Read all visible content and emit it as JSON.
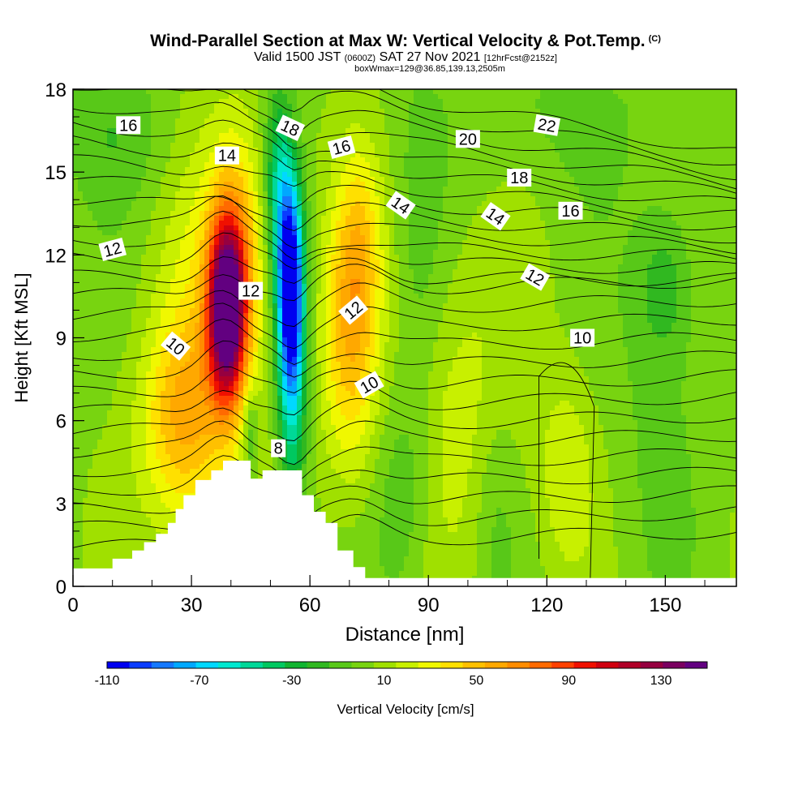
{
  "title": {
    "main": "Wind-Parallel Section at Max W: Vertical Velocity & Pot.Temp.",
    "copyright": "(C)",
    "valid_prefix": "Valid 1500 JST",
    "valid_utc": "(0600Z)",
    "valid_date": "SAT 27 Nov 2021",
    "forecast": "[12hrFcst@2152z]",
    "box_info": "boxWmax=129@36.85,139.13,2505m"
  },
  "chart_data": {
    "type": "heatmap",
    "xlabel": "Distance [nm]",
    "ylabel": "Height [Kft MSL]",
    "xlim": [
      0,
      168
    ],
    "ylim": [
      0,
      18
    ],
    "x_ticks": [
      "0",
      "30",
      "60",
      "90",
      "120",
      "150"
    ],
    "x_tick_values": [
      0,
      30,
      60,
      90,
      120,
      150
    ],
    "y_ticks": [
      "0",
      "3",
      "6",
      "9",
      "12",
      "15",
      "18"
    ],
    "y_tick_values": [
      0,
      3,
      6,
      9,
      12,
      15,
      18
    ],
    "colorbar": {
      "label": "Vertical Velocity [cm/s]",
      "tick_labels": [
        "-110",
        "-70",
        "-30",
        "10",
        "50",
        "90",
        "130"
      ],
      "tick_values": [
        -110,
        -70,
        -30,
        10,
        50,
        90,
        130
      ],
      "levels": [
        -110,
        -100,
        -90,
        -80,
        -70,
        -60,
        -50,
        -40,
        -30,
        -20,
        -10,
        0,
        10,
        20,
        30,
        40,
        50,
        60,
        70,
        80,
        90,
        100,
        110,
        120,
        130,
        140,
        150
      ],
      "colors": [
        "#0000f0",
        "#0a3cff",
        "#1478ff",
        "#00a8ff",
        "#00d8ff",
        "#00e8d0",
        "#00d898",
        "#00c860",
        "#10b430",
        "#30b820",
        "#58c818",
        "#78d410",
        "#a0e000",
        "#c8f000",
        "#f0f800",
        "#ffe000",
        "#ffc000",
        "#ffa800",
        "#ff8c00",
        "#ff6a00",
        "#ff4000",
        "#f01000",
        "#d00010",
        "#b00028",
        "#960040",
        "#7a0060",
        "#620080"
      ]
    },
    "terrain": [
      [
        0,
        0.65
      ],
      [
        10,
        0.65
      ],
      [
        10,
        1.0
      ],
      [
        15,
        1.0
      ],
      [
        15,
        1.3
      ],
      [
        18,
        1.3
      ],
      [
        18,
        1.6
      ],
      [
        21,
        1.6
      ],
      [
        21,
        1.9
      ],
      [
        24,
        1.9
      ],
      [
        24,
        2.3
      ],
      [
        26,
        2.3
      ],
      [
        26,
        2.8
      ],
      [
        28,
        2.8
      ],
      [
        28,
        3.3
      ],
      [
        31,
        3.3
      ],
      [
        31,
        3.85
      ],
      [
        35,
        3.85
      ],
      [
        35,
        4.2
      ],
      [
        38,
        4.2
      ],
      [
        38,
        4.55
      ],
      [
        45,
        4.55
      ],
      [
        45,
        3.9
      ],
      [
        48,
        3.9
      ],
      [
        48,
        4.2
      ],
      [
        58,
        4.2
      ],
      [
        58,
        3.3
      ],
      [
        61,
        3.3
      ],
      [
        61,
        2.7
      ],
      [
        64,
        2.7
      ],
      [
        64,
        2.3
      ],
      [
        67,
        2.3
      ],
      [
        67,
        1.3
      ],
      [
        71,
        1.3
      ],
      [
        71,
        0.7
      ],
      [
        74,
        0.7
      ],
      [
        74,
        0.3
      ],
      [
        168,
        0.3
      ]
    ],
    "velocity_features": [
      {
        "x": 39,
        "y": 10.0,
        "sx": 3.2,
        "sy": 2.2,
        "value": 150
      },
      {
        "x": 42,
        "y": 12.0,
        "sx": 5.0,
        "sy": 3.2,
        "value": 40
      },
      {
        "x": 27,
        "y": 6.0,
        "sx": 7.0,
        "sy": 2.5,
        "value": 40
      },
      {
        "x": 34,
        "y": 8.5,
        "sx": 9.0,
        "sy": 5.5,
        "value": 25
      },
      {
        "x": 55,
        "y": 11.0,
        "sx": 2.2,
        "sy": 2.5,
        "value": -110
      },
      {
        "x": 55.5,
        "y": 7.5,
        "sx": 2.6,
        "sy": 3.8,
        "value": -55
      },
      {
        "x": 52,
        "y": 14.5,
        "sx": 2.5,
        "sy": 2.5,
        "value": -45
      },
      {
        "x": 70,
        "y": 9.0,
        "sx": 5.0,
        "sy": 3.5,
        "value": 45
      },
      {
        "x": 73,
        "y": 12.5,
        "sx": 4.0,
        "sy": 2.5,
        "value": 25
      },
      {
        "x": 96,
        "y": 6.5,
        "sx": 12.0,
        "sy": 4.0,
        "value": 18
      },
      {
        "x": 125,
        "y": 4.0,
        "sx": 5.0,
        "sy": 2.5,
        "value": 20
      },
      {
        "x": 88,
        "y": 10.5,
        "sx": 4.5,
        "sy": 6.0,
        "value": -12
      },
      {
        "x": 83,
        "y": 3.5,
        "sx": 5.0,
        "sy": 3.0,
        "value": -18
      },
      {
        "x": 107,
        "y": 3.0,
        "sx": 4.0,
        "sy": 3.0,
        "value": -12
      },
      {
        "x": 148,
        "y": 6.0,
        "sx": 8.0,
        "sy": 5.0,
        "value": -10
      },
      {
        "x": 10,
        "y": 16.5,
        "sx": 12.0,
        "sy": 2.0,
        "value": -15
      },
      {
        "x": 150,
        "y": 11.0,
        "sx": 5.0,
        "sy": 2.0,
        "value": -22
      },
      {
        "x": 122,
        "y": 17.0,
        "sx": 20.0,
        "sy": 2.0,
        "value": -10
      },
      {
        "x": 45,
        "y": 5.5,
        "sx": 1.5,
        "sy": 1.2,
        "value": -30
      }
    ],
    "contour_labels": [
      {
        "text": "16",
        "x": 14,
        "y": 16.7,
        "angle": 0
      },
      {
        "text": "14",
        "x": 39,
        "y": 15.6,
        "angle": 0
      },
      {
        "text": "18",
        "x": 55,
        "y": 16.6,
        "angle": 25
      },
      {
        "text": "16",
        "x": 68,
        "y": 15.9,
        "angle": -15
      },
      {
        "text": "20",
        "x": 100,
        "y": 16.2,
        "angle": 0
      },
      {
        "text": "22",
        "x": 120,
        "y": 16.7,
        "angle": 10
      },
      {
        "text": "18",
        "x": 113,
        "y": 14.8,
        "angle": 0
      },
      {
        "text": "14",
        "x": 83,
        "y": 13.8,
        "angle": 35
      },
      {
        "text": "14",
        "x": 107,
        "y": 13.4,
        "angle": 35
      },
      {
        "text": "16",
        "x": 126,
        "y": 13.6,
        "angle": 0
      },
      {
        "text": "12",
        "x": 10,
        "y": 12.2,
        "angle": -15
      },
      {
        "text": "12",
        "x": 45,
        "y": 10.7,
        "angle": 0
      },
      {
        "text": "12",
        "x": 71,
        "y": 10.0,
        "angle": -40
      },
      {
        "text": "12",
        "x": 117,
        "y": 11.2,
        "angle": 30
      },
      {
        "text": "10",
        "x": 26,
        "y": 8.7,
        "angle": 40
      },
      {
        "text": "10",
        "x": 75,
        "y": 7.3,
        "angle": -30
      },
      {
        "text": "10",
        "x": 129,
        "y": 9.0,
        "angle": 0
      },
      {
        "text": "8",
        "x": 52,
        "y": 5.0,
        "angle": 0
      }
    ]
  }
}
